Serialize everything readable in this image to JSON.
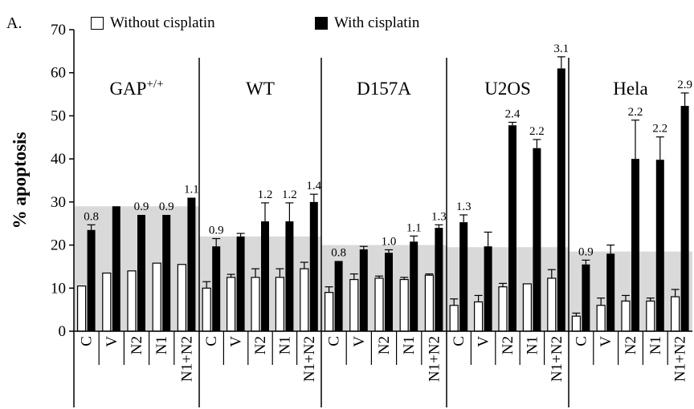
{
  "panel_label": "A.",
  "chart_data": {
    "type": "bar",
    "ylabel": "% apoptosis",
    "ylim": [
      0,
      70
    ],
    "yticks": [
      0,
      10,
      20,
      30,
      40,
      50,
      60,
      70
    ],
    "legend": {
      "placement": "top",
      "entries": [
        {
          "name": "Without cisplatin",
          "color": "#ffffff"
        },
        {
          "name": "With cisplatin",
          "color": "#000000"
        }
      ]
    },
    "background_band_color": "#d9d9d9",
    "groups": [
      {
        "name": "GAP+/+",
        "name_main": "GAP",
        "name_sup": "+/+",
        "band": 29,
        "categories": [
          "C",
          "V",
          "N2",
          "N1",
          "N1+N2"
        ],
        "series": [
          {
            "name": "Without cisplatin",
            "values": [
              10.5,
              13.5,
              14,
              15.8,
              15.5
            ],
            "errors": [
              0,
              0,
              0,
              0,
              0
            ]
          },
          {
            "name": "With cisplatin",
            "values": [
              23.5,
              29,
              27,
              27,
              31
            ],
            "errors": [
              1.2,
              0,
              0,
              0,
              0
            ]
          }
        ],
        "ratios": [
          "0.8",
          "",
          "0.9",
          "0.9",
          "1.1"
        ]
      },
      {
        "name": "WT",
        "name_main": "WT",
        "name_sup": "",
        "band": 22,
        "categories": [
          "C",
          "V",
          "N2",
          "N1",
          "N1+N2"
        ],
        "series": [
          {
            "name": "Without cisplatin",
            "values": [
              10,
              12.5,
              12.5,
              12.5,
              14.5
            ],
            "errors": [
              1.5,
              0.7,
              2,
              2,
              1.5
            ]
          },
          {
            "name": "With cisplatin",
            "values": [
              19.7,
              22,
              25.5,
              25.5,
              30
            ],
            "errors": [
              1.8,
              0.7,
              4.3,
              4.3,
              1.8
            ]
          }
        ],
        "ratios": [
          "0.9",
          "",
          "1.2",
          "1.2",
          "1.4"
        ]
      },
      {
        "name": "D157A",
        "name_main": "D157A",
        "name_sup": "",
        "band": 20,
        "categories": [
          "C",
          "V",
          "N2",
          "N1",
          "N1+N2"
        ],
        "series": [
          {
            "name": "Without cisplatin",
            "values": [
              9,
              12,
              12.3,
              12,
              13
            ],
            "errors": [
              1.3,
              1.3,
              0.5,
              0.5,
              0.3
            ]
          },
          {
            "name": "With cisplatin",
            "values": [
              16.3,
              19,
              18.2,
              20.8,
              24
            ],
            "errors": [
              0,
              0.7,
              0.7,
              1.3,
              0.7
            ]
          }
        ],
        "ratios": [
          "0.8",
          "",
          "1.0",
          "1.1",
          "1.3"
        ]
      },
      {
        "name": "U2OS",
        "name_main": "U2OS",
        "name_sup": "",
        "band": 19.5,
        "categories": [
          "C",
          "V",
          "N2",
          "N1",
          "N1+N2"
        ],
        "series": [
          {
            "name": "Without cisplatin",
            "values": [
              6,
              6.8,
              10.3,
              11,
              12.3
            ],
            "errors": [
              1.5,
              1.5,
              0.8,
              0,
              2
            ]
          },
          {
            "name": "With cisplatin",
            "values": [
              25.3,
              19.7,
              47.8,
              42.5,
              61
            ],
            "errors": [
              1.7,
              3.3,
              0.7,
              2,
              2.7
            ]
          }
        ],
        "ratios": [
          "1.3",
          "",
          "2.4",
          "2.2",
          "3.1"
        ]
      },
      {
        "name": "Hela",
        "name_main": "Hela",
        "name_sup": "",
        "band": 18.5,
        "categories": [
          "C",
          "V",
          "N2",
          "N1",
          "N1+N2"
        ],
        "series": [
          {
            "name": "Without cisplatin",
            "values": [
              3.5,
              6,
              7,
              7,
              8
            ],
            "errors": [
              0.7,
              1.7,
              1.3,
              0.7,
              1.7
            ]
          },
          {
            "name": "With cisplatin",
            "values": [
              15.5,
              18,
              40,
              39.8,
              52.3
            ],
            "errors": [
              1,
              2,
              9,
              5.3,
              3
            ]
          }
        ],
        "ratios": [
          "0.9",
          "",
          "2.2",
          "2.2",
          "2.9"
        ]
      }
    ]
  }
}
